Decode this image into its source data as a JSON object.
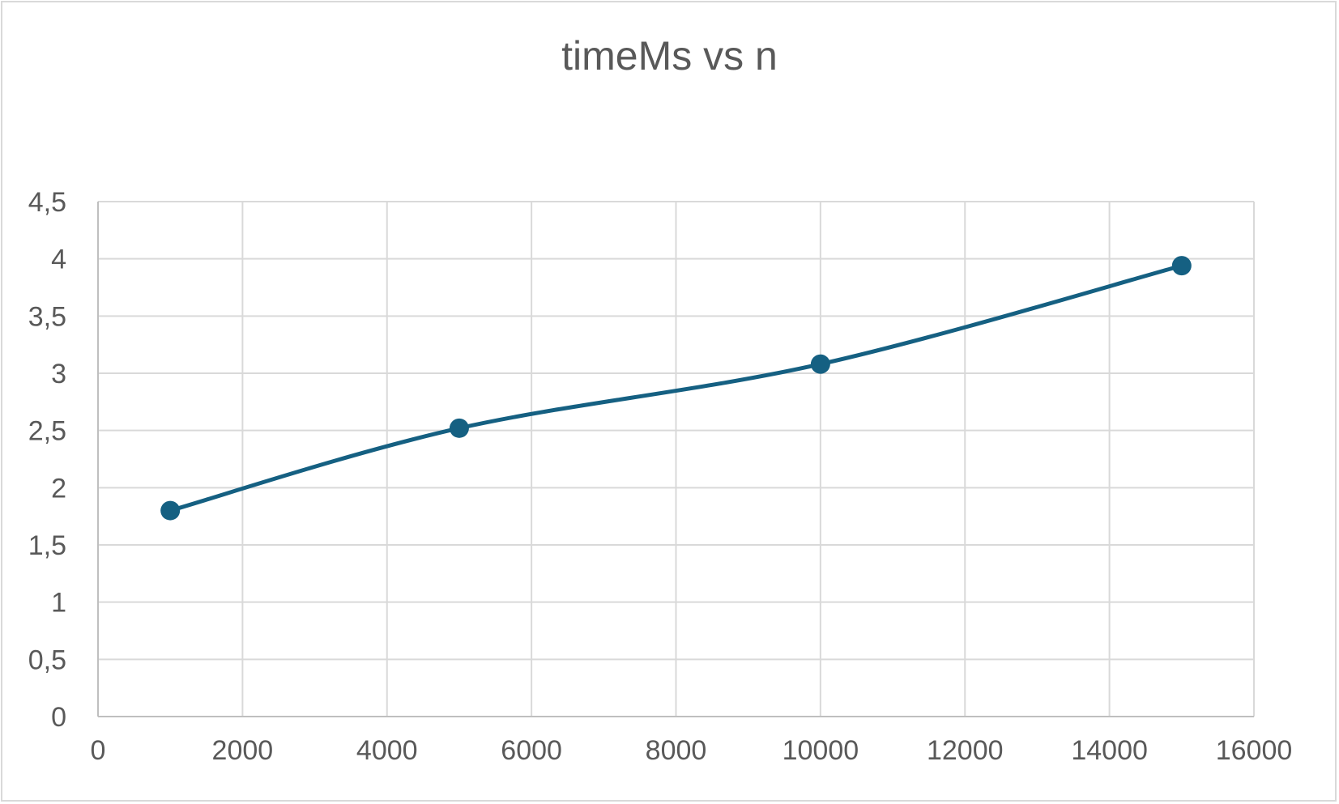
{
  "chart_data": {
    "type": "scatter",
    "title": "timeMs vs n",
    "xlabel": "",
    "ylabel": "",
    "xlim": [
      0,
      16000
    ],
    "ylim": [
      0,
      4.5
    ],
    "x_ticks": [
      "0",
      "2000",
      "4000",
      "6000",
      "8000",
      "10000",
      "12000",
      "14000",
      "16000"
    ],
    "y_ticks": [
      "0",
      "0,5",
      "1",
      "1,5",
      "2",
      "2,5",
      "3",
      "3,5",
      "4",
      "4,5"
    ],
    "grid": true,
    "legend": "none",
    "line_style": "smooth",
    "marker": "circle",
    "color": "#156082",
    "series": [
      {
        "x": [
          1000,
          5000,
          10000,
          15000
        ],
        "y": [
          1.8,
          2.52,
          3.08,
          3.94
        ]
      }
    ]
  }
}
